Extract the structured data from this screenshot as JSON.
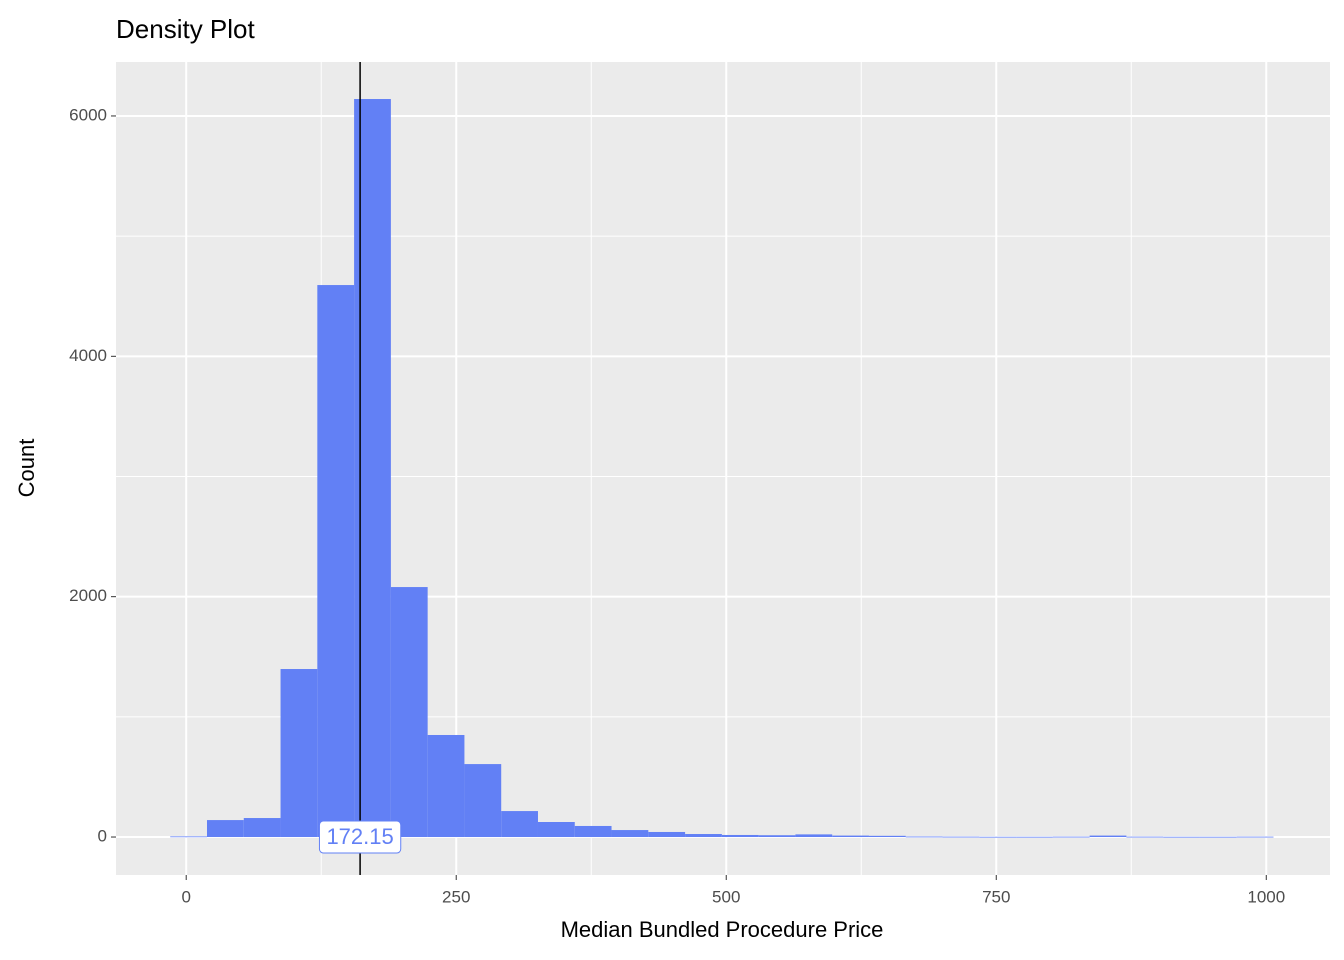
{
  "chart_data": {
    "type": "histogram",
    "title": "Density Plot",
    "xlabel": "Median Bundled Procedure Price",
    "ylabel": "Count",
    "bins": [
      -14.8,
      19.25,
      53.3,
      87.35,
      121.4,
      155.45,
      189.5,
      223.55,
      257.6,
      291.65,
      325.7,
      359.75,
      393.8,
      427.85,
      461.9,
      495.95,
      530,
      564.05,
      598.1,
      632.15,
      666.2,
      700.25,
      734.3,
      768.35,
      802.4,
      836.45,
      870.5,
      904.55,
      938.6,
      972.65,
      1006.7
    ],
    "counts": [
      5,
      141,
      158,
      1398,
      4593,
      6141,
      2080,
      849,
      607,
      216,
      125,
      92,
      58,
      42,
      25,
      17,
      15,
      22,
      12,
      10,
      4,
      3,
      2,
      2,
      3,
      12,
      3,
      2,
      2,
      3
    ],
    "color": "#6280f5",
    "xlim": [
      -65,
      1059
    ],
    "ylim": [
      -316,
      6449
    ],
    "xticks": [
      0,
      250,
      500,
      750,
      1000
    ],
    "yticks": [
      0,
      2000,
      4000,
      6000
    ],
    "x_minor_grid": [
      125,
      375,
      625,
      875
    ],
    "y_minor_grid": [
      1000,
      3000,
      5000
    ],
    "grid": true,
    "vline": 161,
    "annotation": {
      "text": "172.15",
      "x": 161,
      "y": 0,
      "color": "#6280f5"
    }
  }
}
